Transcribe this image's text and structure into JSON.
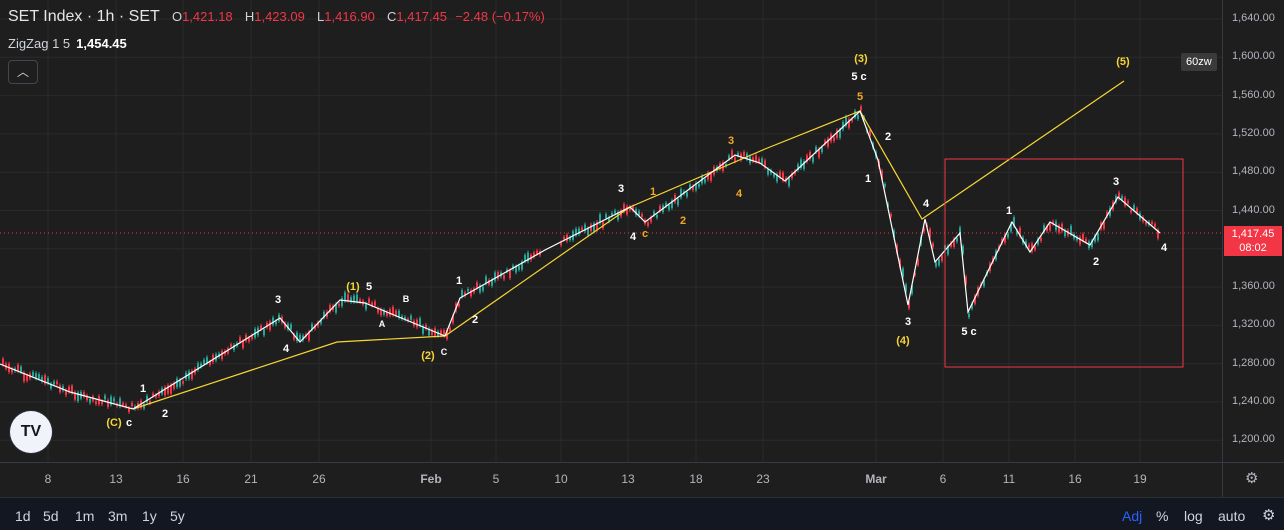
{
  "legend": {
    "symbol": "SET Index · 1h · SET",
    "open_label": "O",
    "open": "1,421.18",
    "high_label": "H",
    "high": "1,423.09",
    "low_label": "L",
    "low": "1,416.90",
    "close_label": "C",
    "close": "1,417.45",
    "change": "−2.48 (−0.17%)"
  },
  "indicator": {
    "name": "ZigZag 1 5",
    "value": "1,454.45"
  },
  "collapse_icon": "chevron-up-icon",
  "price_axis": {
    "ticks": [
      "1,640.00",
      "1,600.00",
      "1,560.00",
      "1,520.00",
      "1,480.00",
      "1,440.00",
      "1,400.00",
      "1,360.00",
      "1,320.00",
      "1,280.00",
      "1,240.00",
      "1,200.00"
    ],
    "current_price": "1,417.45",
    "countdown": "08:02",
    "tag": "60zw"
  },
  "time_axis": {
    "ticks": [
      "8",
      "13",
      "16",
      "21",
      "26",
      "Feb",
      "5",
      "10",
      "13",
      "18",
      "23",
      "Mar",
      "6",
      "11",
      "16",
      "19"
    ]
  },
  "wave_labels": [
    {
      "text": "(C)",
      "color": "#f7d634"
    },
    {
      "text": "c",
      "color": "#ffffff"
    },
    {
      "text": "1",
      "color": "#ffffff"
    },
    {
      "text": "2",
      "color": "#ffffff"
    },
    {
      "text": "3",
      "color": "#ffffff"
    },
    {
      "text": "4",
      "color": "#ffffff"
    },
    {
      "text": "(1)",
      "color": "#f7d634"
    },
    {
      "text": "5",
      "color": "#ffffff"
    },
    {
      "text": "A",
      "color": "#ffffff"
    },
    {
      "text": "B",
      "color": "#ffffff"
    },
    {
      "text": "(2)",
      "color": "#f7d634"
    },
    {
      "text": "C",
      "color": "#ffffff"
    },
    {
      "text": "1",
      "color": "#ffffff"
    },
    {
      "text": "2",
      "color": "#ffffff"
    },
    {
      "text": "3",
      "color": "#ffffff"
    },
    {
      "text": "4",
      "color": "#ffffff"
    },
    {
      "text": "1",
      "color": "#f5a623"
    },
    {
      "text": "c",
      "color": "#f5a623"
    },
    {
      "text": "2",
      "color": "#f5a623"
    },
    {
      "text": "3",
      "color": "#f5a623"
    },
    {
      "text": "4",
      "color": "#f5a623"
    },
    {
      "text": "(3)",
      "color": "#f7d634"
    },
    {
      "text": "5 c",
      "color": "#ffffff"
    },
    {
      "text": "5",
      "color": "#f5a623"
    },
    {
      "text": "2",
      "color": "#ffffff"
    },
    {
      "text": "1",
      "color": "#ffffff"
    },
    {
      "text": "4",
      "color": "#ffffff"
    },
    {
      "text": "3",
      "color": "#ffffff"
    },
    {
      "text": "(4)",
      "color": "#f7d634"
    },
    {
      "text": "5 c",
      "color": "#ffffff"
    },
    {
      "text": "1",
      "color": "#ffffff"
    },
    {
      "text": "2",
      "color": "#ffffff"
    },
    {
      "text": "3",
      "color": "#ffffff"
    },
    {
      "text": "4",
      "color": "#ffffff"
    },
    {
      "text": "(5)",
      "color": "#f7d634"
    }
  ],
  "bottom_bar": {
    "ranges": [
      "1d",
      "5d",
      "1m",
      "3m",
      "1y",
      "5y"
    ],
    "adj": "Adj",
    "percent": "%",
    "log": "log",
    "auto": "auto",
    "settings_icon": "gear-icon"
  },
  "colors": {
    "up": "#26a69a",
    "down": "#f23645",
    "zigzag": "#ffffff",
    "trend": "#f7d634",
    "box": "#f23645"
  }
}
